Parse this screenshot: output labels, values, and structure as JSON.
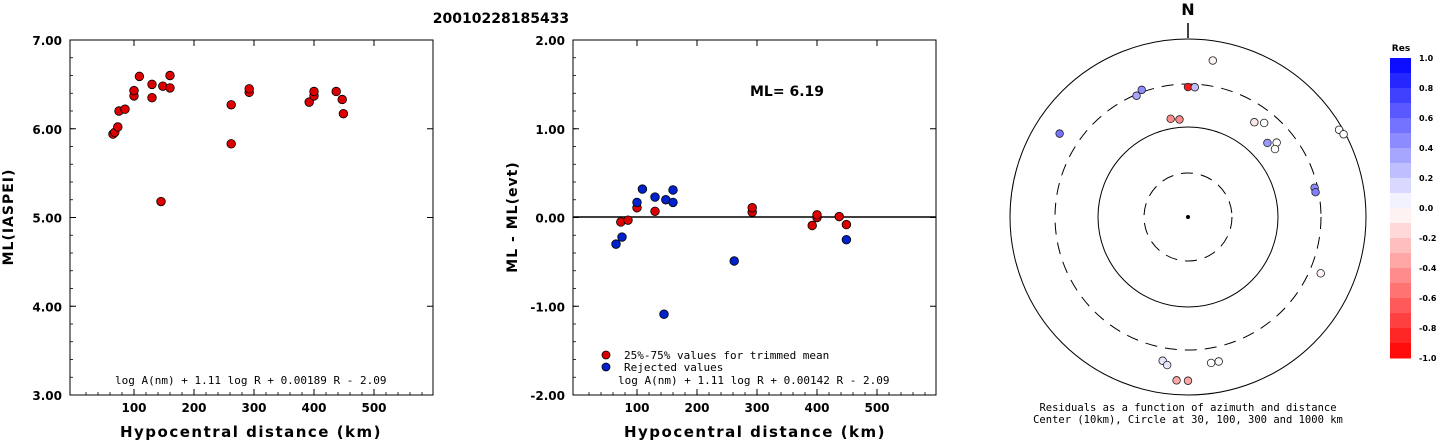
{
  "event_id": "20010228185433",
  "chart_data": [
    {
      "type": "scatter",
      "xlabel": "Hypocentral distance (km)",
      "ylabel": "ML(IASPEI)",
      "xlim": [
        0,
        600
      ],
      "ylim": [
        3.0,
        7.0
      ],
      "x_ticks": [
        "100",
        "200",
        "300",
        "400",
        "500"
      ],
      "y_ticks": [
        "3.00",
        "4.00",
        "5.00",
        "6.00",
        "7.00"
      ],
      "formula": "log A(nm) + 1.11 log R + 0.00189 R - 2.09",
      "marker_color": "#dd0000",
      "points": [
        [
          65,
          5.94
        ],
        [
          68,
          5.96
        ],
        [
          73,
          6.02
        ],
        [
          75,
          6.2
        ],
        [
          85,
          6.22
        ],
        [
          100,
          6.37
        ],
        [
          100,
          6.43
        ],
        [
          109,
          6.59
        ],
        [
          130,
          6.35
        ],
        [
          130,
          6.5
        ],
        [
          145,
          5.18
        ],
        [
          148,
          6.48
        ],
        [
          160,
          6.46
        ],
        [
          160,
          6.6
        ],
        [
          262,
          6.27
        ],
        [
          262,
          5.83
        ],
        [
          292,
          6.41
        ],
        [
          292,
          6.45
        ],
        [
          392,
          6.3
        ],
        [
          400,
          6.37
        ],
        [
          400,
          6.42
        ],
        [
          437,
          6.42
        ],
        [
          447,
          6.33
        ],
        [
          449,
          6.17
        ]
      ]
    },
    {
      "type": "scatter",
      "xlabel": "Hypocentral distance (km)",
      "ylabel": "ML - ML(evt)",
      "xlim": [
        0,
        600
      ],
      "ylim": [
        -2.0,
        2.0
      ],
      "x_ticks": [
        "100",
        "200",
        "300",
        "400",
        "500"
      ],
      "y_ticks": [
        "-2.00",
        "-1.00",
        "0.00",
        "1.00",
        "2.00"
      ],
      "annotation": "ML= 6.19",
      "formula": "log A(nm) + 1.11 log R + 0.00142 R - 2.09",
      "legend": [
        {
          "label": "25%-75% values for trimmed mean",
          "color": "#dd0000"
        },
        {
          "label": "Rejected values",
          "color": "#0022cc"
        }
      ],
      "series": [
        {
          "label_ref": 0,
          "points": [
            [
              73,
              -0.05
            ],
            [
              85,
              -0.03
            ],
            [
              100,
              0.11
            ],
            [
              130,
              0.07
            ],
            [
              292,
              0.06
            ],
            [
              292,
              0.11
            ],
            [
              392,
              -0.09
            ],
            [
              400,
              0.0
            ],
            [
              400,
              0.03
            ],
            [
              437,
              0.01
            ],
            [
              449,
              -0.08
            ]
          ]
        },
        {
          "label_ref": 1,
          "points": [
            [
              65,
              -0.3
            ],
            [
              75,
              -0.22
            ],
            [
              100,
              0.17
            ],
            [
              109,
              0.32
            ],
            [
              130,
              0.23
            ],
            [
              148,
              0.2
            ],
            [
              160,
              0.17
            ],
            [
              160,
              0.31
            ],
            [
              262,
              -0.49
            ],
            [
              145,
              -1.09
            ],
            [
              449,
              -0.25
            ]
          ]
        }
      ]
    },
    {
      "type": "polar",
      "north_label": "N",
      "caption_line1": "Residuals as a function of azimuth and distance",
      "caption_line2": "Center (10km), Circle at 30, 100, 300 and 1000 km",
      "colorbar_title": "Res",
      "colorbar_ticks": [
        "1.0",
        "0.8",
        "0.6",
        "0.4",
        "0.2",
        "0.0",
        "-0.2",
        "-0.4",
        "-0.6",
        "-0.8",
        "-1.0"
      ],
      "points": [
        {
          "az": 9,
          "r": 0.89,
          "res": -0.05
        },
        {
          "az": 360,
          "r": 0.73,
          "res": -0.9
        },
        {
          "az": 3,
          "r": 0.73,
          "res": 0.25
        },
        {
          "az": 337,
          "r": 0.74,
          "res": 0.35
        },
        {
          "az": 340,
          "r": 0.76,
          "res": 0.45
        },
        {
          "az": 350,
          "r": 0.56,
          "res": -0.45
        },
        {
          "az": 355,
          "r": 0.55,
          "res": -0.45
        },
        {
          "az": 303,
          "r": 0.86,
          "res": 0.55
        },
        {
          "az": 35,
          "r": 0.65,
          "res": -0.1
        },
        {
          "az": 39,
          "r": 0.68,
          "res": 0.0
        },
        {
          "az": 50,
          "r": 0.65,
          "res": 0.0
        },
        {
          "az": 47,
          "r": 0.61,
          "res": 0.4
        },
        {
          "az": 52,
          "r": 0.62,
          "res": 0.0
        },
        {
          "az": 60,
          "r": 0.98,
          "res": 0.0
        },
        {
          "az": 62,
          "r": 0.99,
          "res": 0.0
        },
        {
          "az": 77,
          "r": 0.73,
          "res": 0.45
        },
        {
          "az": 79,
          "r": 0.73,
          "res": 0.5
        },
        {
          "az": 113,
          "r": 0.81,
          "res": -0.05
        },
        {
          "az": 171,
          "r": 0.83,
          "res": 0.0
        },
        {
          "az": 168,
          "r": 0.83,
          "res": 0.0
        },
        {
          "az": 180,
          "r": 0.92,
          "res": -0.35
        },
        {
          "az": 184,
          "r": 0.92,
          "res": -0.35
        },
        {
          "az": 190,
          "r": 0.82,
          "res": 0.1
        },
        {
          "az": 188,
          "r": 0.84,
          "res": 0.1
        }
      ]
    }
  ]
}
